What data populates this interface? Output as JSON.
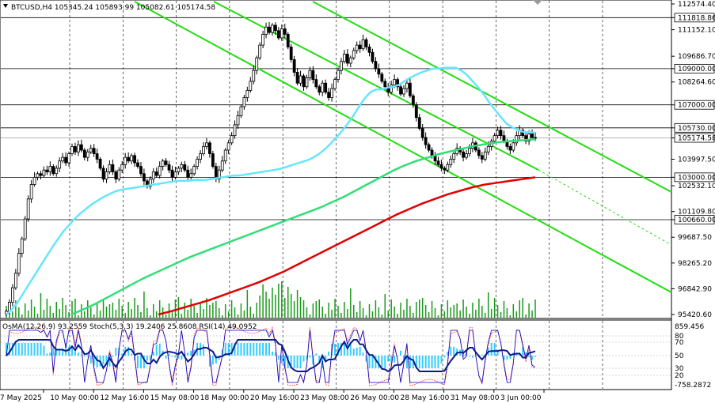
{
  "header": {
    "symbol_line": "BTCUSD,H4  105345.24 105893.99 105082.61 105174.58"
  },
  "indicators_label": "OsMA(12,26,9) 93.2559  Stoch(5,3,3) 19.2406 25.8608  RSI(14) 49.0952",
  "colors": {
    "up": "#000000",
    "down": "#000000",
    "ma_fast": "#66e5ff",
    "ma_mid": "#33dd77",
    "ma_slow": "#e00000",
    "channel": "#22dd11",
    "hline": "#000000",
    "osma": "#33ccff",
    "stoch_main": "#0000cc",
    "stoch_signal": "#ff4444",
    "rsi": "#0a1a8a"
  },
  "chart_data": {
    "type": "candlestick",
    "y_axis_labels": [
      "112574.40",
      "111818.86",
      "111152.10",
      "109686.70",
      "109000.00",
      "108264.60",
      "107000.00",
      "105730.00",
      "105174.58",
      "103997.50",
      "103000.00",
      "102532.10",
      "101109.80",
      "100660.00",
      "99687.50",
      "98265.20",
      "96842.90",
      "95420.60"
    ],
    "ylim": [
      95420.6,
      112574.4
    ],
    "horizontal_levels": [
      111818.86,
      109000.0,
      107000.0,
      105730.0,
      103000.0,
      100660.0
    ],
    "current_price": 105174.58,
    "x_tick_labels": [
      "7 May 2025",
      "10 May 00:00",
      "12 May 16:00",
      "15 May 08:00",
      "18 May 00:00",
      "20 May 16:00",
      "23 May 08:00",
      "26 May 00:00",
      "28 May 16:00",
      "31 May 08:00",
      "3 Jun 00:00"
    ],
    "closes": [
      95600,
      96100,
      96900,
      97700,
      98800,
      99600,
      100700,
      101800,
      102600,
      103000,
      103200,
      103100,
      103400,
      103300,
      103600,
      103200,
      103500,
      103900,
      104100,
      103800,
      104300,
      104700,
      104400,
      104800,
      104500,
      104100,
      104400,
      104600,
      104300,
      104000,
      103500,
      102900,
      103300,
      103700,
      103300,
      102900,
      103400,
      103700,
      104100,
      103900,
      104200,
      103800,
      103600,
      103200,
      102800,
      102500,
      102900,
      103300,
      103100,
      103600,
      103900,
      103700,
      103400,
      103000,
      103300,
      103500,
      103700,
      103400,
      103000,
      103200,
      103600,
      104000,
      104300,
      104700,
      104900,
      104300,
      103600,
      102900,
      103400,
      103900,
      104500,
      104900,
      105300,
      105900,
      106400,
      106900,
      107400,
      107800,
      108300,
      108900,
      109600,
      110300,
      110900,
      111300,
      111000,
      111400,
      111100,
      110700,
      111200,
      110900,
      110200,
      109500,
      108800,
      108200,
      108600,
      108000,
      108500,
      108900,
      108400,
      108000,
      107700,
      108200,
      107700,
      107400,
      107900,
      108400,
      108900,
      109400,
      109800,
      109300,
      109600,
      110000,
      110300,
      110100,
      110600,
      110200,
      109900,
      109400,
      109000,
      108700,
      108300,
      108000,
      107700,
      108100,
      108400,
      108000,
      107600,
      107900,
      108200,
      107500,
      107000,
      106300,
      105700,
      105200,
      104800,
      104500,
      104200,
      103900,
      103700,
      103500,
      103400,
      103700,
      104000,
      104300,
      104600,
      104400,
      104100,
      104300,
      104600,
      104900,
      104500,
      104200,
      104000,
      104400,
      104700,
      105000,
      105300,
      105600,
      105300,
      105000,
      104700,
      104500,
      104900,
      105300,
      105600,
      105300,
      105000,
      105400,
      105200,
      105174.58
    ],
    "series": [
      {
        "name": "MA fast",
        "values": [
          95420,
          95700,
          96100,
          96600,
          97100,
          97600,
          98100,
          98600,
          99100,
          99550,
          100000,
          100350,
          100700,
          101000,
          101250,
          101500,
          101700,
          101900,
          102050,
          102200,
          102300,
          102350,
          102400,
          102450,
          102500,
          102550,
          102600,
          102650,
          102700,
          102750,
          102800,
          102800,
          102800,
          102850,
          102850,
          102850,
          102900,
          102950,
          103000,
          103050,
          103100,
          103100,
          103150,
          103200,
          103250,
          103300,
          103350,
          103400,
          103450,
          103550,
          103650,
          103750,
          103850,
          103950,
          104100,
          104300,
          104550,
          104850,
          105200,
          105550,
          105950,
          106400,
          106900,
          107350,
          107700,
          107850,
          107850,
          107950,
          108000,
          108100,
          108300,
          108500,
          108650,
          108800,
          108900,
          109000,
          109000,
          109050,
          109050,
          109050,
          108900,
          108650,
          108300,
          107950,
          107550,
          107100,
          106700,
          106300,
          105950,
          105750,
          105600,
          105500,
          105500,
          105450
        ]
      },
      {
        "name": "MA mid",
        "values": [
          95420,
          95700,
          96000,
          96350,
          96700,
          97050,
          97400,
          97700,
          98000,
          98300,
          98600,
          98850,
          99100,
          99350,
          99600,
          99850,
          100100,
          100350,
          100600,
          100850,
          101100,
          101350,
          101650,
          101950,
          102300,
          102650,
          103000,
          103350,
          103650,
          103900,
          104100,
          104300,
          104450,
          104600,
          104750,
          104850,
          104950,
          105000,
          105050,
          105100
        ]
      },
      {
        "name": "MA slow",
        "values": [
          95420,
          95600,
          95800,
          96000,
          96200,
          96450,
          96700,
          96950,
          97200,
          97500,
          97800,
          98150,
          98500,
          98850,
          99200,
          99550,
          99900,
          100250,
          100600,
          100950,
          101250,
          101550,
          101800,
          102050,
          102250,
          102450,
          102600,
          102700,
          102800,
          102900,
          103000
        ]
      }
    ]
  }
}
